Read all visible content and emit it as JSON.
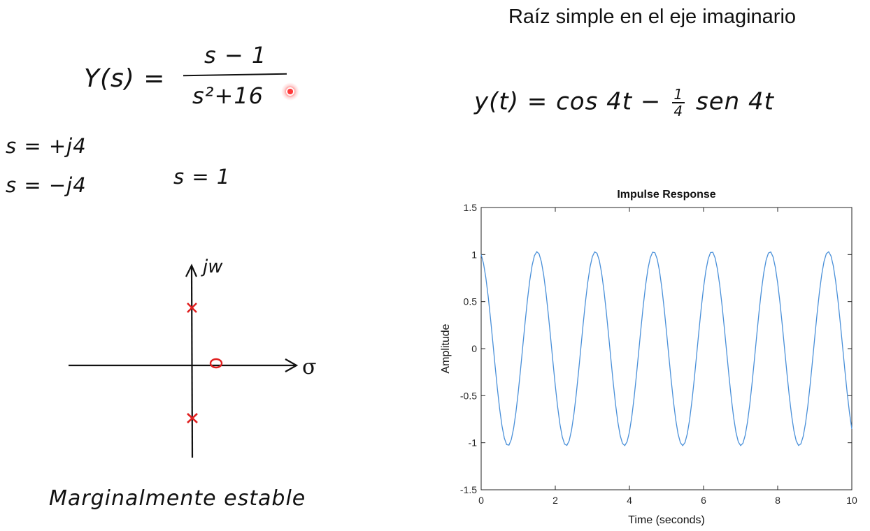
{
  "slide": {
    "title": "Raíz simple en el eje imaginario"
  },
  "transfer_function": {
    "lhs": "Y(s) =",
    "numerator": "s − 1",
    "denominator": "s²+16"
  },
  "poles": {
    "pole_1": "s = +j4",
    "pole_2": "s = −j4"
  },
  "zero": {
    "value": "s = 1"
  },
  "time_response": {
    "prefix": "y(t) = cos 4t −",
    "frac_num": "1",
    "frac_den": "4",
    "suffix": "sen 4t"
  },
  "pz_diagram": {
    "imag_axis_label": "jw",
    "real_axis_label": "σ",
    "marker_color": "#e02020"
  },
  "stability": {
    "label": "Marginalmente estable"
  },
  "chart_data": {
    "type": "line",
    "title": "Impulse Response",
    "xlabel": "Time (seconds)",
    "ylabel": "Amplitude",
    "xlim": [
      0,
      10
    ],
    "ylim": [
      -1.5,
      1.5
    ],
    "xticks": [
      0,
      2,
      4,
      6,
      8,
      10
    ],
    "yticks": [
      -1.5,
      -1,
      -0.5,
      0,
      0.5,
      1,
      1.5
    ],
    "grid": false,
    "line_color": "#4a90d9",
    "series": [
      {
        "function": "cos(4t) - 0.25*sin(4t)",
        "x_start": 0,
        "x_end": 10,
        "amplitude": 1.03,
        "period": 1.571
      }
    ]
  }
}
